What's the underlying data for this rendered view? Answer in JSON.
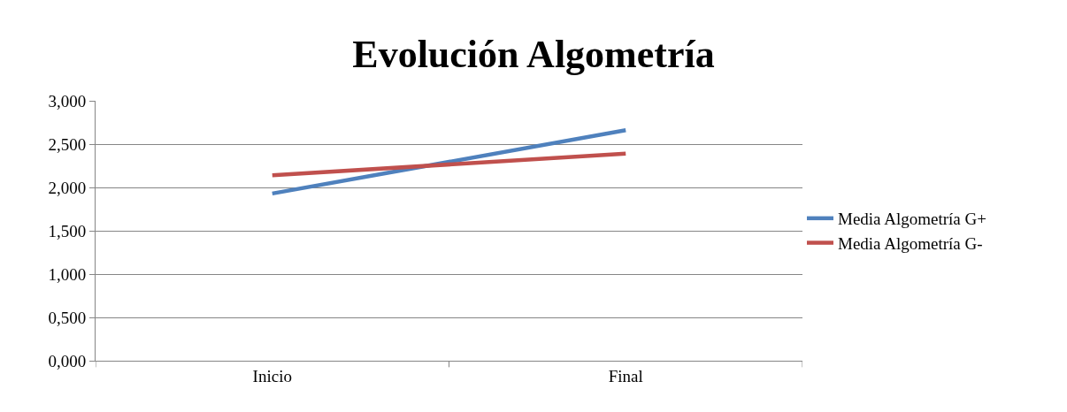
{
  "chart_data": {
    "type": "line",
    "title": "Evolución Algometría",
    "categories": [
      "Inicio",
      "Final"
    ],
    "series": [
      {
        "name": "Media Algometría G+",
        "color": "#4f81bd",
        "values": [
          1.93,
          2.66
        ]
      },
      {
        "name": "Media Algometría G-",
        "color": "#c0504d",
        "values": [
          2.14,
          2.39
        ]
      }
    ],
    "ylim": [
      0,
      3
    ],
    "yticks": [
      {
        "value": 0,
        "label": "0,000"
      },
      {
        "value": 0.5,
        "label": "0,500"
      },
      {
        "value": 1,
        "label": "1,000"
      },
      {
        "value": 1.5,
        "label": "1,500"
      },
      {
        "value": 2,
        "label": "2,000"
      },
      {
        "value": 2.5,
        "label": "2,500"
      },
      {
        "value": 3,
        "label": "3,000"
      }
    ],
    "grid": "y",
    "legend": "right",
    "marker": "none",
    "line_style": "solid"
  }
}
